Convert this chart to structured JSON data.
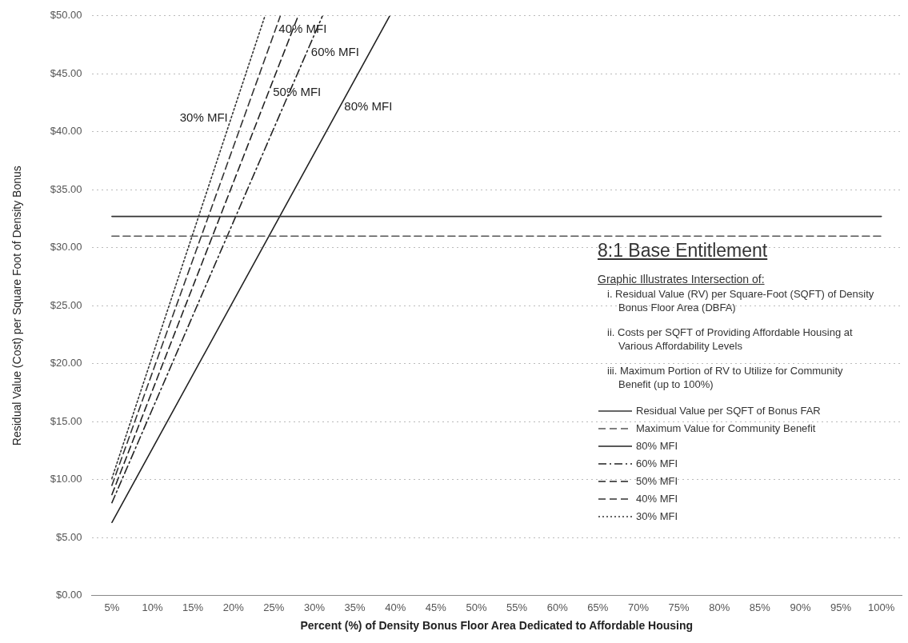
{
  "chart_data": {
    "type": "line",
    "xlabel": "Percent (%) of Density Bonus Floor Area Dedicated to Affordable Housing",
    "ylabel": "Residual Value (Cost) per Square Foot of Density Bonus",
    "xlim": [
      2.5,
      102.5
    ],
    "xticks": [
      {
        "value": 5,
        "label": "5%"
      },
      {
        "value": 10,
        "label": "10%"
      },
      {
        "value": 15,
        "label": "15%"
      },
      {
        "value": 20,
        "label": "20%"
      },
      {
        "value": 25,
        "label": "25%"
      },
      {
        "value": 30,
        "label": "30%"
      },
      {
        "value": 35,
        "label": "35%"
      },
      {
        "value": 40,
        "label": "40%"
      },
      {
        "value": 45,
        "label": "45%"
      },
      {
        "value": 50,
        "label": "50%"
      },
      {
        "value": 55,
        "label": "55%"
      },
      {
        "value": 60,
        "label": "60%"
      },
      {
        "value": 65,
        "label": "65%"
      },
      {
        "value": 70,
        "label": "70%"
      },
      {
        "value": 75,
        "label": "75%"
      },
      {
        "value": 80,
        "label": "80%"
      },
      {
        "value": 85,
        "label": "85%"
      },
      {
        "value": 90,
        "label": "90%"
      },
      {
        "value": 95,
        "label": "95%"
      },
      {
        "value": 100,
        "label": "100%"
      }
    ],
    "ylim": [
      0,
      50
    ],
    "yticks": [
      {
        "value": 0,
        "label": "$0.00"
      },
      {
        "value": 5,
        "label": "$5.00"
      },
      {
        "value": 10,
        "label": "$10.00"
      },
      {
        "value": 15,
        "label": "$15.00"
      },
      {
        "value": 20,
        "label": "$20.00"
      },
      {
        "value": 25,
        "label": "$25.00"
      },
      {
        "value": 30,
        "label": "$30.00"
      },
      {
        "value": 35,
        "label": "$35.00"
      },
      {
        "value": 40,
        "label": "$40.00"
      },
      {
        "value": 45,
        "label": "$45.00"
      },
      {
        "value": 50,
        "label": "$50.00"
      }
    ],
    "grid": "y",
    "legend": "right",
    "marker": "none",
    "series": [
      {
        "name": "Residual Value per SQFT of Bonus FAR",
        "color": "#333333",
        "line_style": "solid",
        "x": [
          5,
          100
        ],
        "values": [
          32.7,
          32.7
        ]
      },
      {
        "name": "Maximum Value for Community Benefit",
        "color": "#555555",
        "line_style": "dashed",
        "x": [
          5,
          100
        ],
        "values": [
          31.0,
          31.0
        ]
      },
      {
        "name": "80% MFI",
        "color": "#222222",
        "line_style": "solid",
        "x": [
          5,
          39.3
        ],
        "values": [
          6.3,
          50
        ]
      },
      {
        "name": "60% MFI",
        "color": "#222222",
        "line_style": "dashdot",
        "x": [
          5,
          31.0
        ],
        "values": [
          8.0,
          50
        ]
      },
      {
        "name": "50% MFI",
        "color": "#222222",
        "line_style": "dashed",
        "x": [
          5,
          28.0
        ],
        "values": [
          8.7,
          50
        ]
      },
      {
        "name": "40% MFI",
        "color": "#333333",
        "line_style": "dashed",
        "x": [
          5,
          25.8
        ],
        "values": [
          9.5,
          50
        ]
      },
      {
        "name": "30% MFI",
        "color": "#333333",
        "line_style": "dotted",
        "x": [
          5,
          23.9
        ],
        "values": [
          10.1,
          50
        ]
      }
    ],
    "annotations": [
      {
        "text": "30% MFI",
        "x": 19.9,
        "y": 41.2
      },
      {
        "text": "40% MFI",
        "x": 25.0,
        "y": 48.8
      },
      {
        "text": "60% MFI",
        "x": 29.0,
        "y": 46.8
      },
      {
        "text": "50% MFI",
        "x": 24.3,
        "y": 43.4
      },
      {
        "text": "80% MFI",
        "x": 33.1,
        "y": 42.1
      },
      "8:1 Base Entitlement",
      "Graphic Illustrates Intersection of:",
      "i. Residual Value (RV) per Square-Foot (SQFT) of Density Bonus Floor Area (DBFA)",
      "ii. Costs per SQFT of Providing Affordable Housing at Various Affordability Levels",
      "iii. Maximum Portion of RV to Utilize for Community Benefit (up to 100%)"
    ]
  }
}
